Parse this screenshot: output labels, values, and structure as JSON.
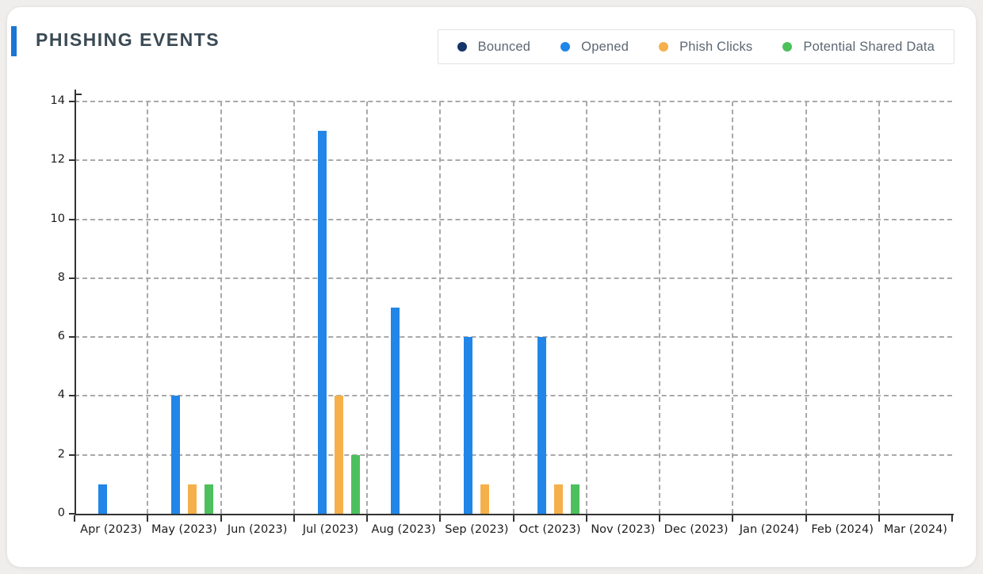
{
  "page": {
    "background": "#f0eeec"
  },
  "card": {
    "title": "PHISHING EVENTS",
    "title_color": "#3b4a54",
    "accent_color": "#1c75d4"
  },
  "chart_data": {
    "type": "bar",
    "title": "PHISHING EVENTS",
    "xlabel": "",
    "ylabel": "",
    "categories": [
      "Apr (2023)",
      "May (2023)",
      "Jun (2023)",
      "Jul (2023)",
      "Aug (2023)",
      "Sep (2023)",
      "Oct (2023)",
      "Nov (2023)",
      "Dec (2023)",
      "Jan (2024)",
      "Feb (2024)",
      "Mar (2024)"
    ],
    "series": [
      {
        "name": "Bounced",
        "color": "#15356b",
        "values": [
          0,
          0,
          0,
          0,
          0,
          0,
          0,
          0,
          0,
          0,
          0,
          0
        ]
      },
      {
        "name": "Opened",
        "color": "#2186e8",
        "values": [
          1,
          4,
          0,
          13,
          7,
          6,
          6,
          0,
          0,
          0,
          0,
          0
        ]
      },
      {
        "name": "Phish Clicks",
        "color": "#f5b04c",
        "values": [
          0,
          1,
          0,
          4,
          0,
          1,
          1,
          0,
          0,
          0,
          0,
          0
        ]
      },
      {
        "name": "Potential Shared Data",
        "color": "#4cc05c",
        "values": [
          0,
          1,
          0,
          2,
          0,
          0,
          1,
          0,
          0,
          0,
          0,
          0
        ]
      }
    ],
    "ylim": [
      0,
      14
    ],
    "ytick_step": 2,
    "grid": "dashed-both",
    "legend_position": "top-right"
  }
}
